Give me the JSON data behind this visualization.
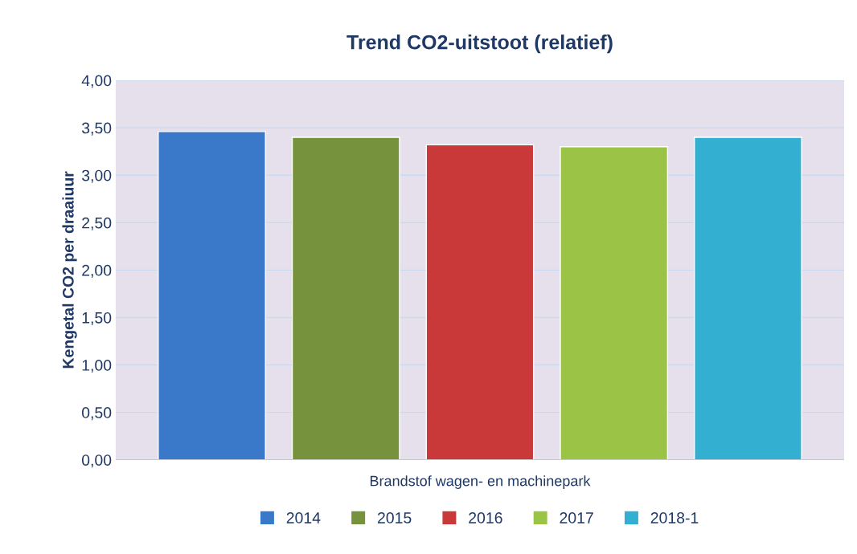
{
  "chart_data": {
    "type": "bar",
    "title": "Trend CO2-uitstoot (relatief)",
    "ylabel": "Kengetal CO2 per draaiuur",
    "categories": [
      "Brandstof wagen- en machinepark"
    ],
    "series": [
      {
        "name": "2014",
        "color": "#3a78c9",
        "values": [
          3.46
        ]
      },
      {
        "name": "2015",
        "color": "#76923c",
        "values": [
          3.4
        ]
      },
      {
        "name": "2016",
        "color": "#c9393a",
        "values": [
          3.32
        ]
      },
      {
        "name": "2017",
        "color": "#9bc346",
        "values": [
          3.3
        ]
      },
      {
        "name": "2018-1",
        "color": "#33afd2",
        "values": [
          3.4
        ]
      }
    ],
    "ylim": [
      0,
      4
    ],
    "yticks": [
      {
        "value": 0,
        "label": "0,00"
      },
      {
        "value": 0.5,
        "label": "0,50"
      },
      {
        "value": 1,
        "label": "1,00"
      },
      {
        "value": 1.5,
        "label": "1,50"
      },
      {
        "value": 2,
        "label": "2,00"
      },
      {
        "value": 2.5,
        "label": "2,50"
      },
      {
        "value": 3,
        "label": "3,00"
      },
      {
        "value": 3.5,
        "label": "3,50"
      },
      {
        "value": 4,
        "label": "4,00"
      }
    ],
    "grid": "y",
    "legend": "bottom"
  }
}
